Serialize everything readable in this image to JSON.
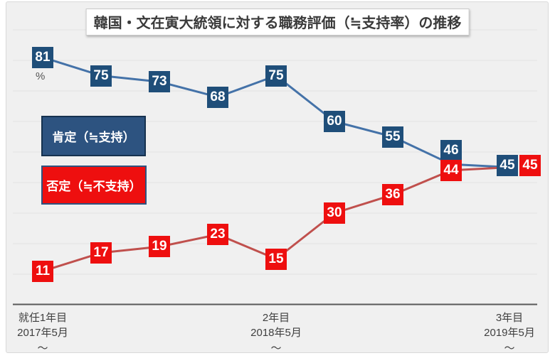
{
  "title": "韓国・文在寅大統領に対する職務評価（≒支持率）の推移",
  "chart_data": {
    "type": "line",
    "unit_label": "%",
    "categories": [
      "2017年5月",
      "",
      "",
      "",
      "2018年5月",
      "",
      "",
      "",
      "2019年5月"
    ],
    "x_tick_labels": [
      {
        "point_index": 0,
        "lines": [
          "就任1年目",
          "2017年5月",
          "～"
        ]
      },
      {
        "point_index": 4,
        "lines": [
          "2年目",
          "2018年5月",
          "～"
        ]
      },
      {
        "point_index": 8,
        "lines": [
          "3年目",
          "2019年5月",
          "～"
        ]
      }
    ],
    "series": [
      {
        "name": "肯定（≒支持）",
        "values": [
          81,
          75,
          73,
          68,
          75,
          60,
          55,
          46,
          45
        ],
        "line_color": "#4472a8",
        "label_bg": "#1f4e79",
        "label_text_color": "#ffffff",
        "label_offsets": [
          {
            "index": 7,
            "dx": 0,
            "dy": -19
          },
          {
            "index": 8,
            "dx": -3,
            "dy": -3
          }
        ]
      },
      {
        "name": "否定（≒不支持）",
        "values": [
          11,
          17,
          19,
          23,
          15,
          30,
          36,
          44,
          45
        ],
        "line_color": "#c0504d",
        "label_bg": "#ee0f0f",
        "label_text_color": "#ffffff",
        "label_offsets": [
          {
            "index": 8,
            "dx": 29,
            "dy": -3
          }
        ]
      }
    ],
    "ylim": [
      0,
      100
    ],
    "grid": true,
    "grid_step": 10,
    "grid_max": 90,
    "legend_position": "left-middle"
  },
  "legend": {
    "items": [
      {
        "bg": "#2d5380",
        "border": "#16324f"
      },
      {
        "bg": "#ee0f0f",
        "border": "#2d5380"
      }
    ]
  },
  "colors": {
    "page_bg": "#ffffff",
    "chart_bg": "#f0f0f0",
    "gridline": "#e2e2e2",
    "axis": "#595959",
    "tick_text": "#404040",
    "title_text": "#3a3a3a"
  }
}
